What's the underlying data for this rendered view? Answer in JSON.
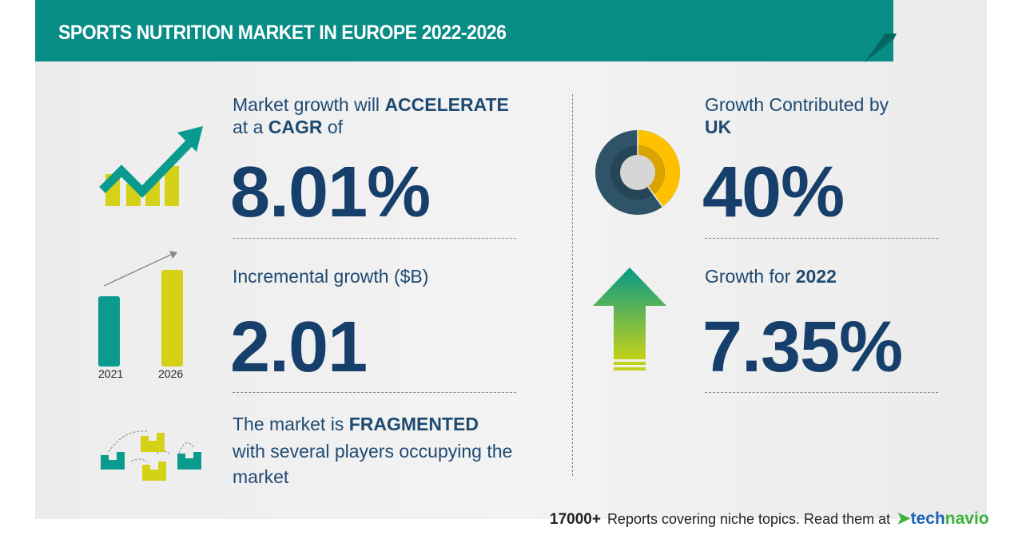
{
  "header": {
    "title": "SPORTS NUTRITION MARKET IN EUROPE 2022-2026"
  },
  "cagr": {
    "line1_pre": "Market growth will ",
    "line1_bold": "ACCELERATE",
    "line2_pre": "at a ",
    "line2_bold": "CAGR",
    "line2_post": " of",
    "value": "8.01%",
    "icon": "growth-chart-arrow-icon"
  },
  "incremental": {
    "label": "Incremental growth ($B)",
    "value": "2.01",
    "bar_years": [
      "2021",
      "2026"
    ],
    "icon": "bar-comparison-icon"
  },
  "market": {
    "line1_pre": "The market is ",
    "line1_bold": "FRAGMENTED",
    "line2": "with several players occupying the",
    "line3": "market",
    "icon": "buildings-network-icon"
  },
  "uk": {
    "line1": "Growth Contributed by",
    "line2": "UK",
    "value": "40%",
    "share_percent": 40,
    "icon": "donut-chart-icon"
  },
  "growth2022": {
    "label": "Growth for ",
    "year": "2022",
    "value": "7.35%",
    "icon": "up-arrow-icon"
  },
  "footer": {
    "count": "17000+",
    "text": "Reports covering niche topics. Read them at",
    "logo_part1": "tech",
    "logo_part2": "navio"
  },
  "colors": {
    "teal": "#078d85",
    "navy": "#163f6b",
    "lime": "#d4d117",
    "yellow": "#ffc000",
    "slate": "#2f5468"
  }
}
